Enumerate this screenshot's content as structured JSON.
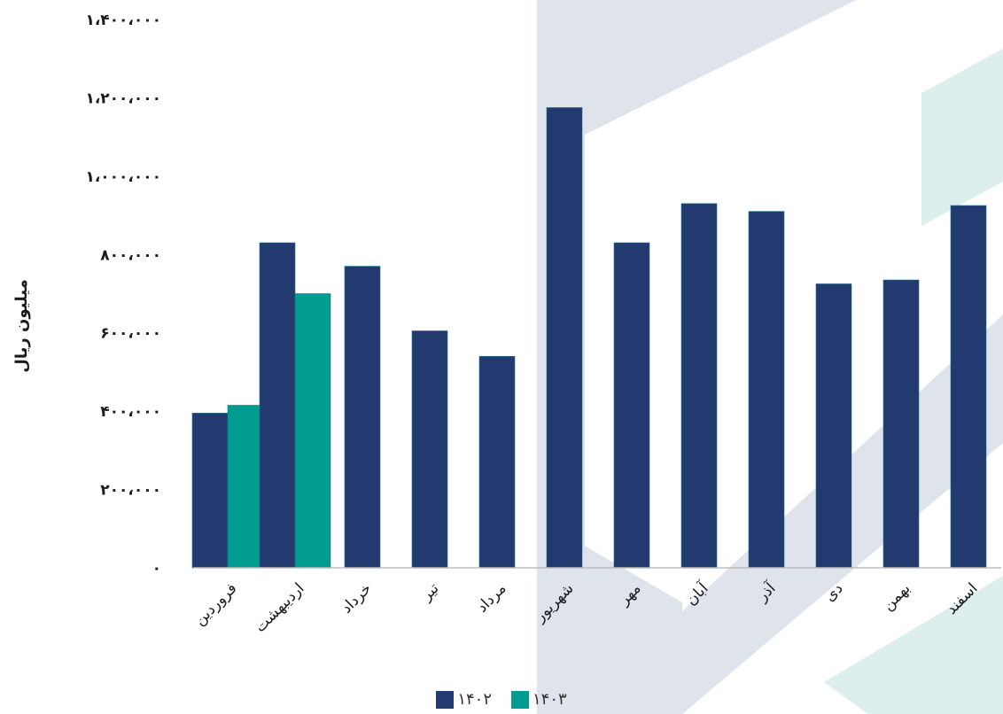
{
  "chart_data": {
    "type": "bar",
    "title": "",
    "xlabel": "",
    "ylabel": "میلیون ریال",
    "ylim": [
      0,
      1400000
    ],
    "yticks": [
      0,
      200000,
      400000,
      600000,
      800000,
      1000000,
      1200000,
      1400000
    ],
    "ytick_labels": [
      "۰",
      "۲۰۰،۰۰۰",
      "۴۰۰،۰۰۰",
      "۶۰۰،۰۰۰",
      "۸۰۰،۰۰۰",
      "۱،۰۰۰،۰۰۰",
      "۱،۲۰۰،۰۰۰",
      "۱،۴۰۰،۰۰۰"
    ],
    "categories": [
      "فروردین",
      "اردیبهشت",
      "خرداد",
      "تیر",
      "مرداد",
      "شهریور",
      "مهر",
      "آبان",
      "آذر",
      "دی",
      "بهمن",
      "اسفند"
    ],
    "series": [
      {
        "name": "۱۴۰۲",
        "color": "#223a70",
        "values": [
          395000,
          830000,
          770000,
          605000,
          540000,
          1175000,
          830000,
          930000,
          910000,
          725000,
          735000,
          925000
        ]
      },
      {
        "name": "۱۴۰۳",
        "color": "#009b91",
        "values": [
          415000,
          700000,
          null,
          null,
          null,
          null,
          null,
          null,
          null,
          null,
          null,
          null
        ]
      }
    ],
    "grid": false,
    "legend": "bottom"
  }
}
